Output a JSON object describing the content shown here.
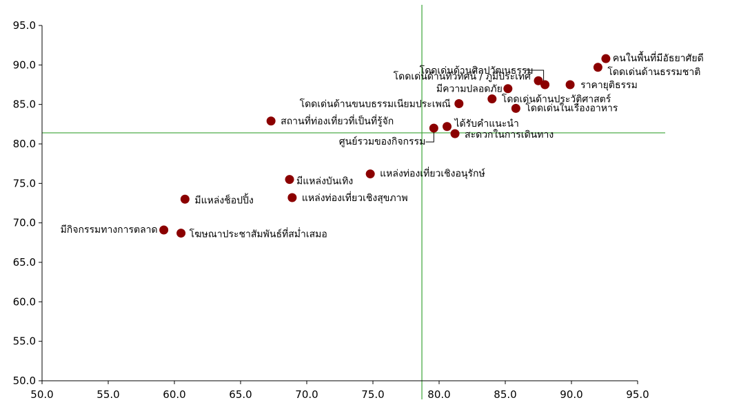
{
  "chart_data": {
    "type": "scatter",
    "title": "",
    "xlabel": "",
    "ylabel": "",
    "xlim": [
      50,
      95
    ],
    "ylim": [
      50,
      95
    ],
    "x_ticks": [
      "50.0",
      "55.0",
      "60.0",
      "65.0",
      "70.0",
      "75.0",
      "80.0",
      "85.0",
      "90.0",
      "95.0"
    ],
    "y_ticks": [
      "50.0",
      "55.0",
      "60.0",
      "65.0",
      "70.0",
      "75.0",
      "80.0",
      "85.0",
      "90.0",
      "95.0"
    ],
    "grid": false,
    "reference_lines": {
      "x": 78.7,
      "y": 81.4,
      "color": "#3aa335"
    },
    "point_color": "#8b0000",
    "points": [
      {
        "label": "คนในพื้นที่มีอัธยาศัยดี",
        "x": 92.6,
        "y": 90.8
      },
      {
        "label": "โดดเด่นด้านธรรมชาติ",
        "x": 92.0,
        "y": 89.7
      },
      {
        "label": "โดดเด่นด้านศิลปวัฒนธรรม",
        "x": 88.0,
        "y": 87.5
      },
      {
        "label": "โดดเด่นด้านทิวทัศน์ / ภูมิประเทศ",
        "x": 87.5,
        "y": 88.0
      },
      {
        "label": "ราคายุติธรรม",
        "x": 89.9,
        "y": 87.5
      },
      {
        "label": "มีความปลอดภัย",
        "x": 85.2,
        "y": 87.0
      },
      {
        "label": "โดดเด่นด้านประวัติศาสตร์",
        "x": 84.0,
        "y": 85.7
      },
      {
        "label": "โดดเด่นด้านขนบธรรมเนียมประเพณี",
        "x": 81.5,
        "y": 85.1
      },
      {
        "label": "โดดเด่นในเรื่องอาหาร",
        "x": 85.8,
        "y": 84.5
      },
      {
        "label": "สถานที่ท่องเที่ยวที่เป็นที่รู้จัก",
        "x": 67.3,
        "y": 82.9
      },
      {
        "label": "ได้รับคำแนะนำ",
        "x": 80.6,
        "y": 82.2
      },
      {
        "label": "ศูนย์รวมของกิจกรรม",
        "x": 79.6,
        "y": 82.0
      },
      {
        "label": "สะดวกในการเดินทาง",
        "x": 81.2,
        "y": 81.3
      },
      {
        "label": "แหล่งท่องเที่ยวเชิงอนุรักษ์",
        "x": 74.8,
        "y": 76.2
      },
      {
        "label": "มีแหล่งบันเทิง",
        "x": 68.7,
        "y": 75.5
      },
      {
        "label": "แหล่งท่องเที่ยวเชิงสุขภาพ",
        "x": 68.9,
        "y": 73.2
      },
      {
        "label": "มีแหล่งช็อปปิ้ง",
        "x": 60.8,
        "y": 73.0
      },
      {
        "label": "มีกิจกรรมทางการตลาด",
        "x": 59.2,
        "y": 69.1
      },
      {
        "label": "โฆษณาประชาสัมพันธ์ที่สม่ำเสมอ",
        "x": 60.5,
        "y": 68.7
      }
    ]
  }
}
